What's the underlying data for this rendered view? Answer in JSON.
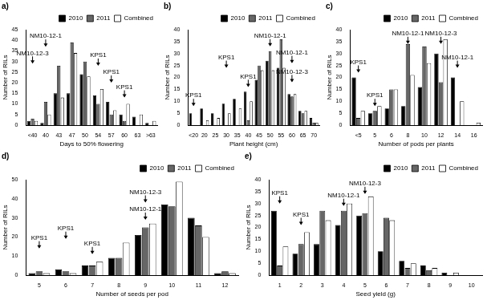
{
  "chart_data": [
    {
      "type": "bar",
      "title": "a)",
      "x_label": "Days to 50% flowering",
      "y_label": "Number of RILs",
      "categories": [
        "<40",
        "40",
        "43",
        "47",
        "50",
        "54",
        "57",
        "60",
        "63",
        ">63"
      ],
      "series": [
        {
          "name": "2010",
          "color": "#000000",
          "values": [
            2,
            1,
            15,
            15,
            24,
            14,
            11,
            5,
            4,
            1
          ]
        },
        {
          "name": "2011",
          "color": "#666666",
          "values": [
            3,
            11,
            28,
            39,
            30,
            10,
            5,
            2,
            0,
            0
          ]
        },
        {
          "name": "Combined",
          "color": "#ffffff",
          "values": [
            2,
            5,
            13,
            34,
            23,
            17,
            7,
            10,
            5,
            2
          ]
        }
      ],
      "ylim": [
        0,
        45
      ],
      "yticks": [
        0,
        5,
        10,
        15,
        20,
        25,
        30,
        35,
        40,
        45
      ],
      "grid": false,
      "legend": "top",
      "annotations": [
        {
          "text": "NM10-12-1",
          "x": "40",
          "y": 37
        },
        {
          "text": "NM10-12-3",
          "x": "<40",
          "y": 29
        },
        {
          "text": "KPS1",
          "x": "54",
          "y": 28
        },
        {
          "text": "KPS1",
          "x": "57",
          "y": 20
        },
        {
          "text": "KPS1",
          "x": "60",
          "y": 13
        }
      ]
    },
    {
      "type": "bar",
      "title": "b)",
      "x_label": "Plant height (cm)",
      "y_label": "Number of RILs",
      "categories": [
        "<20",
        "20",
        "25",
        "30",
        "35",
        "40",
        "45",
        "50",
        "55",
        "60",
        "65",
        "70"
      ],
      "series": [
        {
          "name": "2010",
          "color": "#000000",
          "values": [
            5,
            7,
            5,
            9,
            11,
            14,
            19,
            27,
            24,
            13,
            6,
            3
          ]
        },
        {
          "name": "2011",
          "color": "#666666",
          "values": [
            0,
            0,
            0,
            0,
            0,
            2,
            25,
            31,
            36,
            12,
            5,
            1
          ]
        },
        {
          "name": "Combined",
          "color": "#ffffff",
          "values": [
            0,
            2,
            3,
            5,
            7,
            10,
            23,
            23,
            24,
            13,
            6,
            1
          ]
        }
      ],
      "ylim": [
        0,
        40
      ],
      "yticks": [
        0,
        5,
        10,
        15,
        20,
        25,
        30,
        35,
        40
      ],
      "grid": false,
      "legend": "top",
      "annotations": [
        {
          "text": "KPS1",
          "x": "<20",
          "y": 8
        },
        {
          "text": "KPS1",
          "x": "30",
          "y": 24
        },
        {
          "text": "KPS1",
          "x": "40",
          "y": 16
        },
        {
          "text": "NM10-12-1",
          "x": "50",
          "y": 33
        },
        {
          "text": "NM10-12-1",
          "x": "60",
          "y": 26
        },
        {
          "text": "NM10-12-3",
          "x": "60",
          "y": 18
        }
      ]
    },
    {
      "type": "bar",
      "title": "c)",
      "x_label": "Number of pods per plants",
      "y_label": "Number of RILs",
      "categories": [
        "<5",
        "5",
        "6",
        "8",
        "10",
        "12",
        "14",
        "16"
      ],
      "series": [
        {
          "name": "2010",
          "color": "#000000",
          "values": [
            20,
            5,
            7,
            8,
            16,
            30,
            20,
            0
          ]
        },
        {
          "name": "2011",
          "color": "#666666",
          "values": [
            3,
            6,
            15,
            34,
            33,
            18,
            0,
            0
          ]
        },
        {
          "name": "Combined",
          "color": "#ffffff",
          "values": [
            6,
            8,
            15,
            21,
            26,
            36,
            10,
            1
          ]
        }
      ],
      "ylim": [
        0,
        40
      ],
      "yticks": [
        0,
        5,
        10,
        15,
        20,
        25,
        30,
        35,
        40
      ],
      "grid": false,
      "legend": "top",
      "annotations": [
        {
          "text": "KPS1",
          "x": "<5",
          "y": 22
        },
        {
          "text": "KPS1",
          "x": "5",
          "y": 8
        },
        {
          "text": "NM10-12-1",
          "x": "8",
          "y": 34
        },
        {
          "text": "NM10-12-3",
          "x": "12",
          "y": 34
        },
        {
          "text": "NM10-12-1",
          "x": "14",
          "y": 24
        }
      ]
    },
    {
      "type": "bar",
      "title": "d)",
      "x_label": "Number of seeds per pod",
      "y_label": "Number of RILs",
      "categories": [
        "5",
        "6",
        "7",
        "8",
        "9",
        "10",
        "11",
        "12"
      ],
      "series": [
        {
          "name": "2010",
          "color": "#000000",
          "values": [
            1,
            3,
            5,
            9,
            21,
            37,
            30,
            1
          ]
        },
        {
          "name": "2011",
          "color": "#666666",
          "values": [
            2,
            2,
            5,
            9,
            25,
            36,
            26,
            2
          ]
        },
        {
          "name": "Combined",
          "color": "#ffffff",
          "values": [
            1,
            1,
            7,
            17,
            27,
            49,
            20,
            1
          ]
        }
      ],
      "ylim": [
        0,
        50
      ],
      "yticks": [
        0,
        10,
        20,
        30,
        40,
        50
      ],
      "grid": false,
      "legend": "top",
      "annotations": [
        {
          "text": "KPS1",
          "x": "5",
          "y": 14
        },
        {
          "text": "KPS1",
          "x": "6",
          "y": 19
        },
        {
          "text": "KPS1",
          "x": "7",
          "y": 11
        },
        {
          "text": "NM10-12-1",
          "x": "9",
          "y": 29
        },
        {
          "text": "NM10-12-3",
          "x": "9",
          "y": 38
        }
      ]
    },
    {
      "type": "bar",
      "title": "e)",
      "x_label": "Seed yield (g)",
      "y_label": "Number of RILs",
      "categories": [
        "1",
        "2",
        "3",
        "4",
        "5",
        "6",
        "7",
        "8",
        "9",
        "10"
      ],
      "series": [
        {
          "name": "2010",
          "color": "#000000",
          "values": [
            27,
            9,
            13,
            21,
            25,
            10,
            6,
            4,
            1,
            0
          ]
        },
        {
          "name": "2011",
          "color": "#666666",
          "values": [
            4,
            13,
            27,
            27,
            26,
            24,
            3,
            2,
            0,
            0
          ]
        },
        {
          "name": "Combined",
          "color": "#ffffff",
          "values": [
            12,
            18,
            23,
            30,
            33,
            23,
            5,
            3,
            1,
            0
          ]
        }
      ],
      "ylim": [
        0,
        40
      ],
      "yticks": [
        0,
        5,
        10,
        15,
        20,
        25,
        30,
        35,
        40
      ],
      "grid": false,
      "legend": "top",
      "annotations": [
        {
          "text": "KPS1",
          "x": "1",
          "y": 30
        },
        {
          "text": "KPS1",
          "x": "2",
          "y": 21
        },
        {
          "text": "NM10-12-1",
          "x": "4",
          "y": 29
        },
        {
          "text": "NM10-12-3",
          "x": "5",
          "y": 34
        }
      ]
    }
  ]
}
